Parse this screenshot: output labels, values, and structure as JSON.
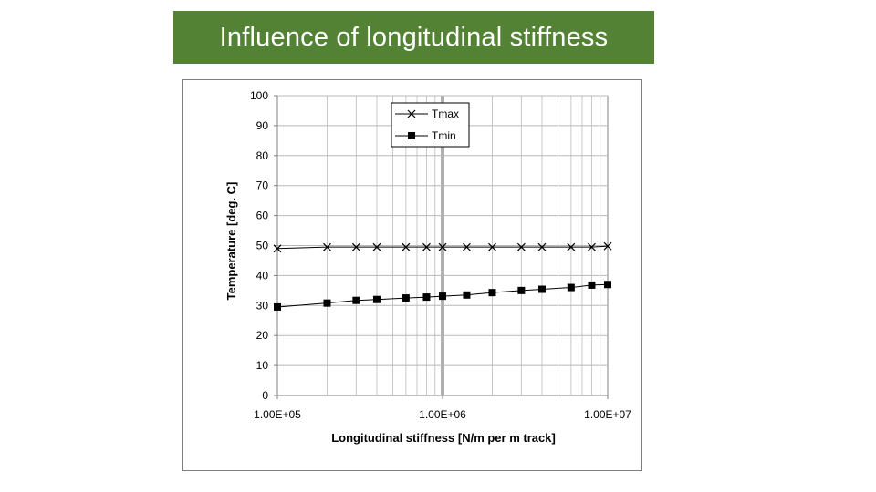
{
  "slide": {
    "title": "Influence of longitudinal stiffness",
    "title_bg": "#548235",
    "title_color": "#ffffff"
  },
  "chart_data": {
    "type": "line",
    "title": "",
    "xlabel": "Longitudinal stiffness [N/m per m track]",
    "ylabel": "Temperature [deg. C]",
    "x_scale": "log",
    "xlim": [
      100000,
      10000000
    ],
    "ylim": [
      0,
      100
    ],
    "y_ticks": [
      0,
      10,
      20,
      30,
      40,
      50,
      60,
      70,
      80,
      90,
      100
    ],
    "x_tick_labels": [
      "1.00E+05",
      "1.00E+06",
      "1.00E+07"
    ],
    "x_tick_values": [
      100000,
      1000000,
      10000000
    ],
    "grid": true,
    "legend_position": "top-center",
    "series": [
      {
        "name": "Tmax",
        "marker": "x",
        "color": "#000000",
        "points": [
          [
            100000,
            49.0
          ],
          [
            200000,
            49.5
          ],
          [
            300000,
            49.5
          ],
          [
            400000,
            49.5
          ],
          [
            600000,
            49.5
          ],
          [
            800000,
            49.5
          ],
          [
            1000000,
            49.5
          ],
          [
            1400000,
            49.5
          ],
          [
            2000000,
            49.5
          ],
          [
            3000000,
            49.5
          ],
          [
            4000000,
            49.5
          ],
          [
            6000000,
            49.5
          ],
          [
            8000000,
            49.5
          ],
          [
            10000000,
            49.8
          ]
        ]
      },
      {
        "name": "Tmin",
        "marker": "square",
        "color": "#000000",
        "points": [
          [
            100000,
            29.5
          ],
          [
            200000,
            30.8
          ],
          [
            300000,
            31.7
          ],
          [
            400000,
            32.0
          ],
          [
            600000,
            32.5
          ],
          [
            800000,
            32.8
          ],
          [
            1000000,
            33.1
          ],
          [
            1400000,
            33.5
          ],
          [
            2000000,
            34.3
          ],
          [
            3000000,
            35.0
          ],
          [
            4000000,
            35.4
          ],
          [
            6000000,
            36.0
          ],
          [
            8000000,
            36.8
          ],
          [
            10000000,
            37.0
          ]
        ]
      }
    ]
  }
}
